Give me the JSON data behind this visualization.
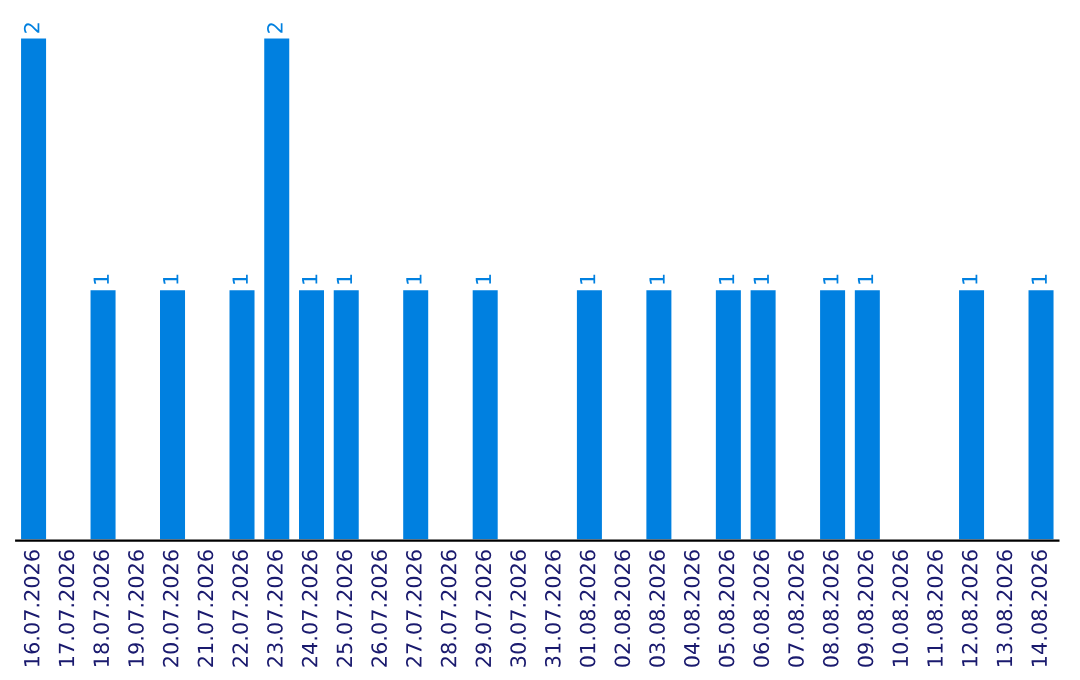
{
  "chart_data": {
    "type": "bar",
    "categories": [
      "16.07.2026",
      "17.07.2026",
      "18.07.2026",
      "19.07.2026",
      "20.07.2026",
      "21.07.2026",
      "22.07.2026",
      "23.07.2026",
      "24.07.2026",
      "25.07.2026",
      "26.07.2026",
      "27.07.2026",
      "28.07.2026",
      "29.07.2026",
      "30.07.2026",
      "31.07.2026",
      "01.08.2026",
      "02.08.2026",
      "03.08.2026",
      "04.08.2026",
      "05.08.2026",
      "06.08.2026",
      "07.08.2026",
      "08.08.2026",
      "09.08.2026",
      "10.08.2026",
      "11.08.2026",
      "12.08.2026",
      "13.08.2026",
      "14.08.2026"
    ],
    "values": [
      2,
      null,
      1,
      null,
      1,
      null,
      1,
      2,
      1,
      1,
      null,
      1,
      null,
      1,
      null,
      null,
      1,
      null,
      1,
      null,
      1,
      1,
      null,
      1,
      1,
      null,
      null,
      1,
      null,
      1
    ],
    "data_labels": true,
    "color": "#0080e0",
    "tick_labels": "x",
    "grid": false,
    "legend": false
  }
}
